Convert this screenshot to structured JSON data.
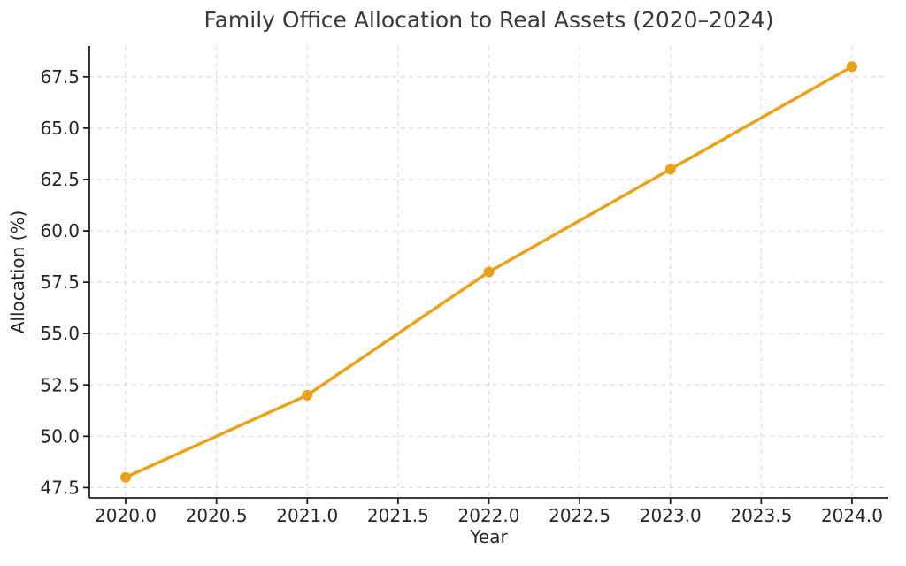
{
  "chart_data": {
    "type": "line",
    "title": "Family Office Allocation to Real Assets (2020–2024)",
    "xlabel": "Year",
    "ylabel": "Allocation (%)",
    "x": [
      2020,
      2021,
      2022,
      2023,
      2024
    ],
    "values": [
      48,
      52,
      58,
      63,
      68
    ],
    "xlim": [
      2019.8,
      2024.2
    ],
    "ylim": [
      47,
      69
    ],
    "xticks": [
      {
        "value": 2020.0,
        "label": "2020.0"
      },
      {
        "value": 2020.5,
        "label": "2020.5"
      },
      {
        "value": 2021.0,
        "label": "2021.0"
      },
      {
        "value": 2021.5,
        "label": "2021.5"
      },
      {
        "value": 2022.0,
        "label": "2022.0"
      },
      {
        "value": 2022.5,
        "label": "2022.5"
      },
      {
        "value": 2023.0,
        "label": "2023.0"
      },
      {
        "value": 2023.5,
        "label": "2023.5"
      },
      {
        "value": 2024.0,
        "label": "2024.0"
      }
    ],
    "yticks": [
      {
        "value": 47.5,
        "label": "47.5"
      },
      {
        "value": 50.0,
        "label": "50.0"
      },
      {
        "value": 52.5,
        "label": "52.5"
      },
      {
        "value": 55.0,
        "label": "55.0"
      },
      {
        "value": 57.5,
        "label": "57.5"
      },
      {
        "value": 60.0,
        "label": "60.0"
      },
      {
        "value": 62.5,
        "label": "62.5"
      },
      {
        "value": 65.0,
        "label": "65.0"
      },
      {
        "value": 67.5,
        "label": "67.5"
      }
    ],
    "grid": true,
    "grid_style": "dashed",
    "legend_position": "none",
    "marker": "circle",
    "colors": {
      "line": "#E8A21C",
      "marker": "#E8A21C",
      "grid": "#DCDCDC",
      "axis": "#1F1F1F",
      "text": "#262626",
      "background": "#FFFFFF"
    }
  }
}
